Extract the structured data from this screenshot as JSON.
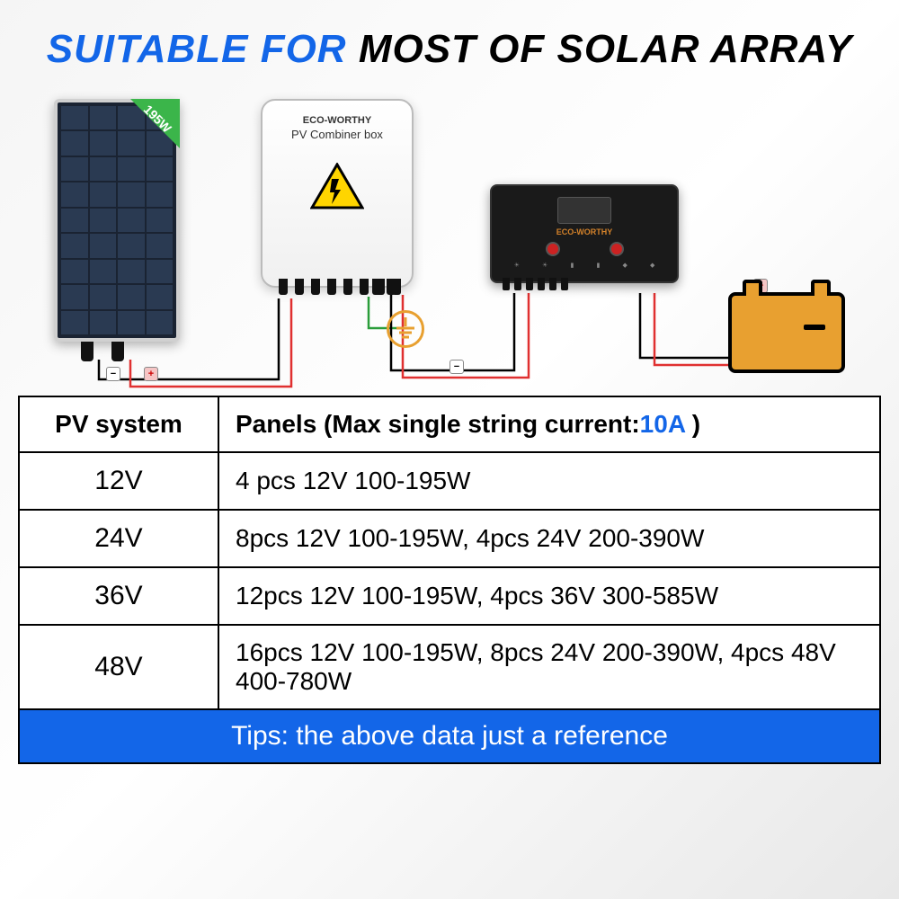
{
  "title": {
    "blue_part": "SUITABLE FOR",
    "black_part": "MOST OF SOLAR ARRAY"
  },
  "colors": {
    "accent_blue": "#1366e8",
    "battery_orange": "#e8a030",
    "wire_red": "#e03030",
    "wire_green": "#2a9d3a",
    "panel_dark": "#1a2332"
  },
  "diagram": {
    "panel_badge": "195W",
    "combiner_brand": "ECO-WORTHY",
    "combiner_label": "PV Combiner box",
    "controller_brand": "ECO-WORTHY"
  },
  "table": {
    "header_col1": "PV system",
    "header_col2_prefix": "Panels (Max single string current:",
    "header_col2_value": "10A",
    "header_col2_suffix": " )",
    "rows": [
      {
        "v": "12V",
        "p": "4 pcs 12V 100-195W"
      },
      {
        "v": "24V",
        "p": "8pcs 12V 100-195W, 4pcs 24V 200-390W"
      },
      {
        "v": "36V",
        "p": "12pcs 12V 100-195W, 4pcs 36V 300-585W"
      },
      {
        "v": "48V",
        "p": "16pcs 12V 100-195W, 8pcs 24V 200-390W, 4pcs 48V 400-780W"
      }
    ],
    "tips": "Tips: the above data just a reference"
  }
}
